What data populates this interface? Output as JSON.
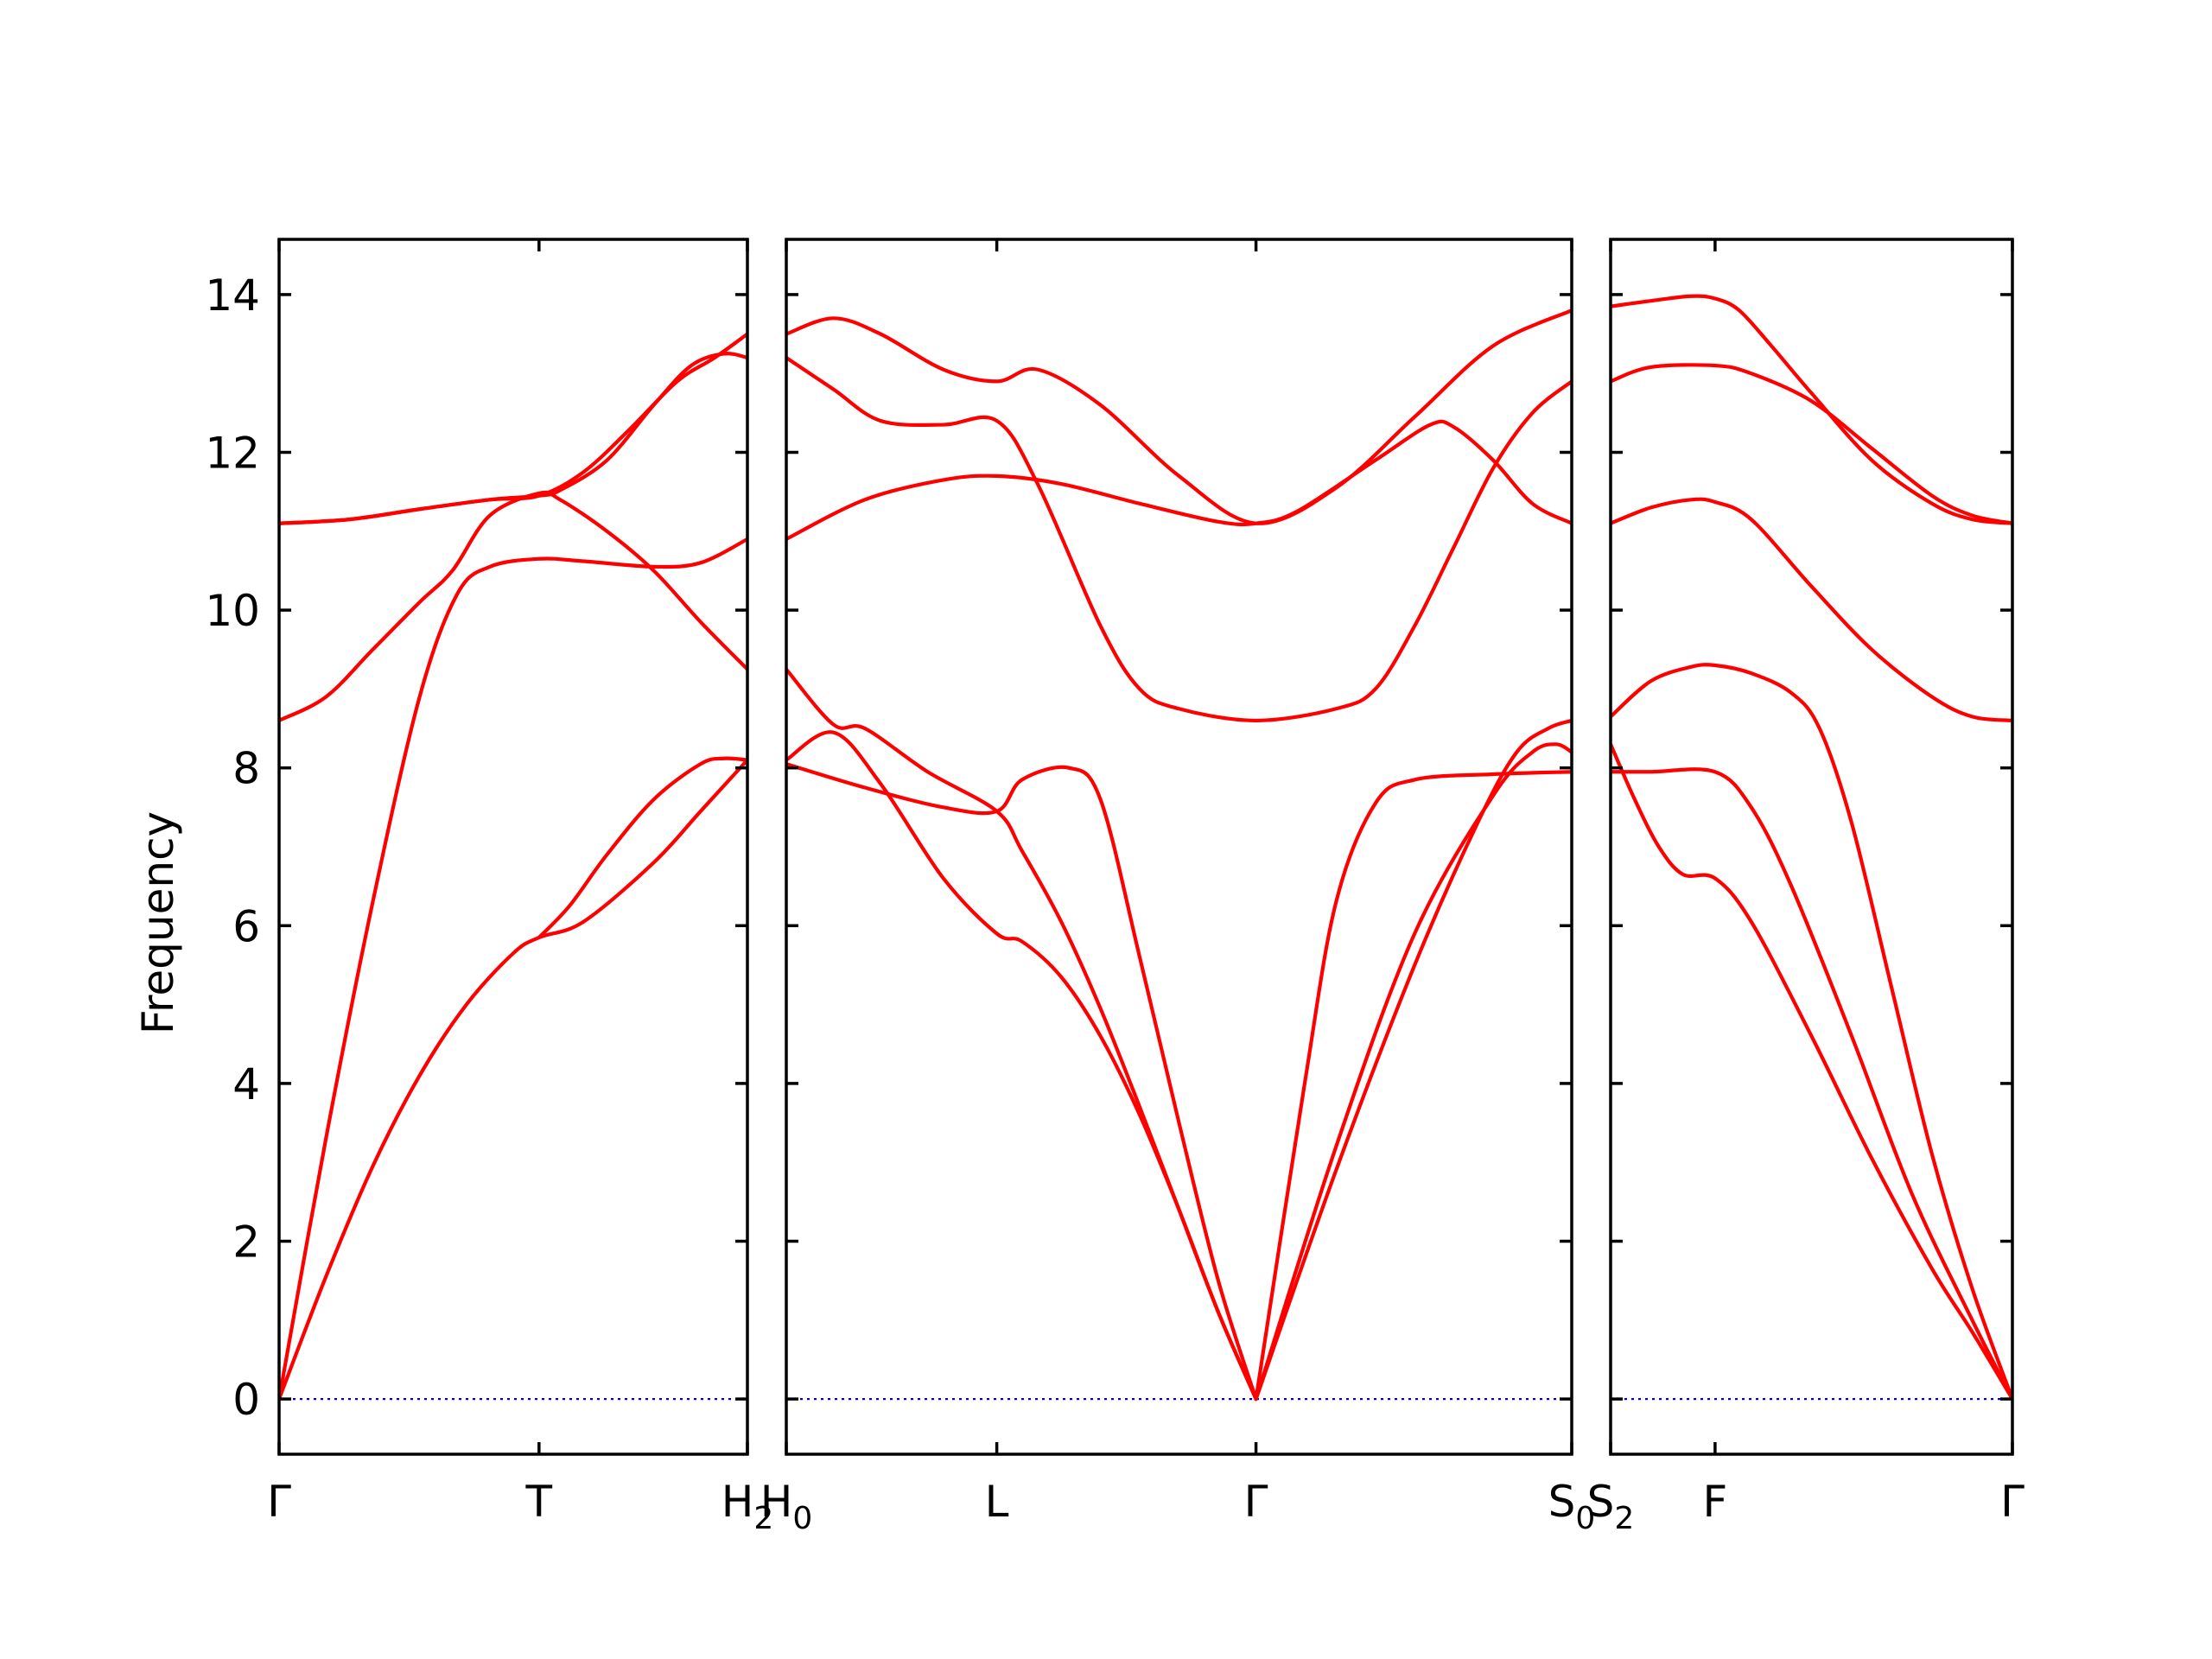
{
  "colors": {
    "band": "#ff0000",
    "zero_line": "#0000cc",
    "axes": "#000000"
  },
  "chart_data": {
    "type": "line",
    "title": "",
    "xlabel": "",
    "ylabel": "Frequency",
    "ylim": [
      -0.7,
      14.7
    ],
    "yticks": [
      0,
      2,
      4,
      6,
      8,
      10,
      12,
      14
    ],
    "grid": false,
    "legend": "none",
    "zero_line": {
      "y": 0,
      "style": "dotted"
    },
    "panels": [
      {
        "xlim": [
          0,
          1
        ],
        "ticks": [
          {
            "x": 0,
            "label": "Γ"
          },
          {
            "x": 0.555,
            "label": "T"
          },
          {
            "x": 1,
            "label": "H",
            "sub": "2"
          }
        ],
        "series": [
          {
            "x": [
              0,
              0.1,
              0.2,
              0.3,
              0.4,
              0.5,
              0.555,
              0.65,
              0.8,
              0.9,
              1.0
            ],
            "y": [
              0,
              1.55,
              2.95,
              4.1,
              5.0,
              5.65,
              5.85,
              6.05,
              6.8,
              7.45,
              8.1
            ]
          },
          {
            "x": [
              0,
              0.1,
              0.2,
              0.3,
              0.38,
              0.45,
              0.555,
              0.65,
              0.8,
              0.9,
              1.0
            ],
            "y": [
              0,
              3.3,
              6.3,
              8.9,
              10.2,
              10.55,
              10.65,
              10.62,
              10.55,
              10.6,
              10.9
            ]
          },
          {
            "x": [
              0,
              0.1,
              0.2,
              0.3,
              0.37,
              0.45,
              0.555,
              0.6,
              0.7,
              0.8,
              0.9,
              1.0
            ],
            "y": [
              8.6,
              8.9,
              9.5,
              10.1,
              10.5,
              11.2,
              11.48,
              11.4,
              11.0,
              10.5,
              9.85,
              9.25
            ]
          },
          {
            "x": [
              0,
              0.15,
              0.3,
              0.45,
              0.555,
              0.65,
              0.75,
              0.85,
              0.93,
              1.0
            ],
            "y": [
              11.1,
              11.15,
              11.28,
              11.4,
              11.45,
              11.75,
              12.3,
              12.9,
              13.2,
              13.5
            ]
          },
          {
            "x": [
              0,
              0.15,
              0.3,
              0.45,
              0.555,
              0.6,
              0.7,
              0.8,
              0.88,
              0.95,
              1.0
            ],
            "y": [
              11.1,
              11.15,
              11.28,
              11.4,
              11.45,
              11.52,
              11.9,
              12.6,
              13.1,
              13.25,
              13.2
            ]
          },
          {
            "x": [
              0.555,
              0.62,
              0.7,
              0.8,
              0.9,
              0.95,
              1.0
            ],
            "y": [
              5.85,
              6.25,
              6.9,
              7.6,
              8.05,
              8.12,
              8.1
            ]
          }
        ]
      },
      {
        "xlim": [
          0,
          1
        ],
        "ticks": [
          {
            "x": 0,
            "label": "H",
            "sub": "0"
          },
          {
            "x": 0.268,
            "label": "L"
          },
          {
            "x": 0.598,
            "label": "Γ"
          },
          {
            "x": 1,
            "label": "S",
            "sub": "0"
          }
        ],
        "series": [
          {
            "x": [
              0,
              0.06,
              0.12,
              0.2,
              0.268,
              0.3,
              0.35,
              0.4,
              0.45,
              0.5,
              0.55,
              0.598
            ],
            "y": [
              8.1,
              8.45,
              7.8,
              6.6,
              5.9,
              5.8,
              5.35,
              4.6,
              3.6,
              2.4,
              1.1,
              0
            ]
          },
          {
            "x": [
              0,
              0.06,
              0.1,
              0.18,
              0.268,
              0.3,
              0.35,
              0.4,
              0.45,
              0.5,
              0.55,
              0.598
            ],
            "y": [
              9.25,
              8.55,
              8.5,
              7.95,
              7.45,
              6.95,
              6.05,
              4.95,
              3.7,
              2.4,
              1.1,
              0
            ]
          },
          {
            "x": [
              0,
              0.1,
              0.2,
              0.268,
              0.3,
              0.36,
              0.4,
              0.45,
              0.5,
              0.55,
              0.598
            ],
            "y": [
              8.05,
              7.75,
              7.5,
              7.45,
              7.85,
              8.0,
              7.6,
              5.6,
              3.5,
              1.5,
              0
            ]
          },
          {
            "x": [
              0,
              0.06,
              0.12,
              0.2,
              0.268,
              0.32,
              0.4,
              0.45,
              0.5,
              0.598,
              0.7,
              0.75,
              0.8,
              0.85,
              0.9,
              0.95,
              1.0
            ],
            "y": [
              13.2,
              12.8,
              12.4,
              12.35,
              12.4,
              11.6,
              9.8,
              9.0,
              8.75,
              8.6,
              8.75,
              9.0,
              9.8,
              10.8,
              11.8,
              12.5,
              12.9
            ]
          },
          {
            "x": [
              0,
              0.1,
              0.2,
              0.268,
              0.35,
              0.45,
              0.55,
              0.598,
              0.65,
              0.75,
              0.82,
              0.85,
              0.9,
              0.95,
              1.0
            ],
            "y": [
              10.9,
              11.4,
              11.65,
              11.7,
              11.6,
              11.35,
              11.12,
              11.1,
              11.25,
              11.9,
              12.35,
              12.32,
              11.9,
              11.35,
              11.1
            ]
          },
          {
            "x": [
              0,
              0.06,
              0.12,
              0.2,
              0.268,
              0.32,
              0.4,
              0.5,
              0.598,
              0.7,
              0.8,
              0.9,
              1.0
            ],
            "y": [
              13.5,
              13.7,
              13.5,
              13.05,
              12.9,
              13.05,
              12.6,
              11.7,
              11.1,
              11.55,
              12.45,
              13.35,
              13.8
            ]
          },
          {
            "x": [
              0.598,
              0.66,
              0.7,
              0.75,
              0.8,
              0.9,
              1.0
            ],
            "y": [
              0,
              4.0,
              6.3,
              7.55,
              7.85,
              7.92,
              7.95
            ]
          },
          {
            "x": [
              0.598,
              0.7,
              0.8,
              0.9,
              0.95,
              0.98,
              1.0
            ],
            "y": [
              0,
              3.2,
              5.9,
              7.65,
              8.2,
              8.3,
              8.2
            ]
          },
          {
            "x": [
              0.598,
              0.7,
              0.8,
              0.88,
              0.93,
              0.97,
              1.0
            ],
            "y": [
              0,
              2.9,
              5.5,
              7.3,
              8.2,
              8.5,
              8.6
            ]
          }
        ]
      },
      {
        "xlim": [
          0,
          1
        ],
        "ticks": [
          {
            "x": 0,
            "label": "S",
            "sub": "2"
          },
          {
            "x": 0.26,
            "label": "F"
          },
          {
            "x": 1,
            "label": "Γ"
          }
        ],
        "series": [
          {
            "x": [
              0,
              0.06,
              0.12,
              0.18,
              0.26,
              0.35,
              0.5,
              0.65,
              0.8,
              0.9,
              1.0
            ],
            "y": [
              8.3,
              7.6,
              7.0,
              6.65,
              6.6,
              6.05,
              4.6,
              3.05,
              1.65,
              0.85,
              0
            ]
          },
          {
            "x": [
              0,
              0.1,
              0.26,
              0.35,
              0.45,
              0.6,
              0.75,
              0.9,
              1.0
            ],
            "y": [
              7.95,
              7.95,
              7.95,
              7.5,
              6.5,
              4.6,
              2.6,
              1.0,
              0
            ]
          },
          {
            "x": [
              0,
              0.1,
              0.2,
              0.26,
              0.35,
              0.45,
              0.52,
              0.6,
              0.7,
              0.8,
              0.9,
              1.0
            ],
            "y": [
              8.65,
              9.1,
              9.28,
              9.3,
              9.2,
              8.95,
              8.5,
              7.3,
              5.2,
              3.1,
              1.4,
              0
            ]
          },
          {
            "x": [
              0,
              0.1,
              0.2,
              0.26,
              0.35,
              0.5,
              0.65,
              0.8,
              0.9,
              1.0
            ],
            "y": [
              11.1,
              11.3,
              11.4,
              11.37,
              11.15,
              10.3,
              9.5,
              8.9,
              8.65,
              8.6
            ]
          },
          {
            "x": [
              0,
              0.1,
              0.26,
              0.35,
              0.5,
              0.65,
              0.8,
              0.9,
              1.0
            ],
            "y": [
              12.9,
              13.08,
              13.1,
              13.0,
              12.65,
              12.05,
              11.45,
              11.2,
              11.1
            ]
          },
          {
            "x": [
              0,
              0.1,
              0.2,
              0.26,
              0.32,
              0.4,
              0.5,
              0.65,
              0.8,
              0.9,
              1.0
            ],
            "y": [
              13.85,
              13.92,
              13.98,
              13.95,
              13.8,
              13.35,
              12.75,
              11.9,
              11.35,
              11.15,
              11.1
            ]
          }
        ]
      }
    ]
  }
}
